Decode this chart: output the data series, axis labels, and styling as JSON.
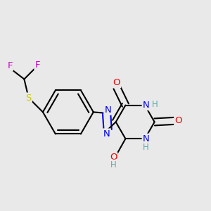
{
  "background_color": "#e9e9e9",
  "bond_color": "#000000",
  "bond_width": 1.5,
  "atom_colors": {
    "C": "#000000",
    "H": "#5aacac",
    "N": "#0000ee",
    "O": "#ee0000",
    "S": "#cccc00",
    "F": "#cc00cc"
  },
  "font_size": 9.5,
  "font_size_small": 8.5
}
